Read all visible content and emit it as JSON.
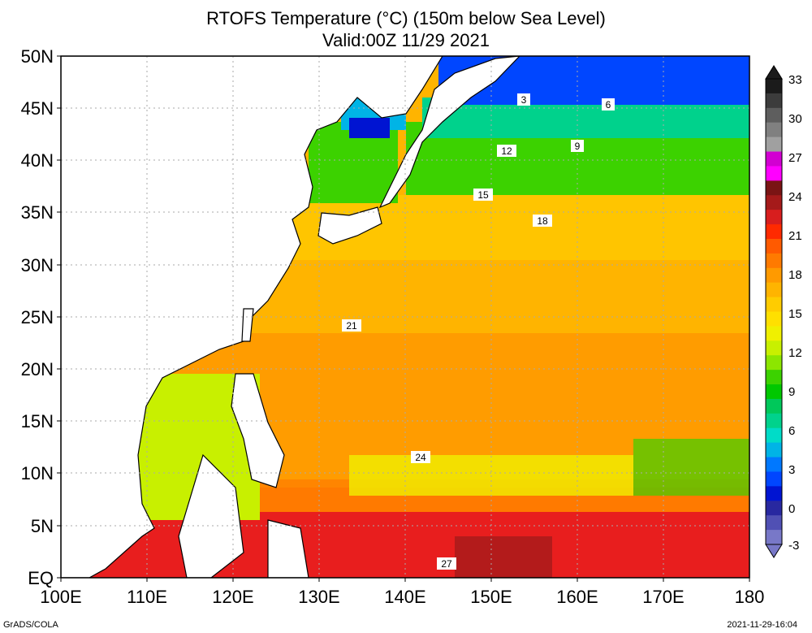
{
  "title": {
    "line1": "RTOFS Temperature (°C) (150m below Sea Level)",
    "line2": "Valid:00Z 11/29 2021"
  },
  "axes": {
    "lat_labels": [
      "50N",
      "45N",
      "40N",
      "35N",
      "30N",
      "25N",
      "20N",
      "15N",
      "10N",
      "5N",
      "EQ"
    ],
    "lon_labels": [
      "100E",
      "110E",
      "120E",
      "130E",
      "140E",
      "150E",
      "160E",
      "170E",
      "180"
    ]
  },
  "colorbar": {
    "labels": [
      "33",
      "30",
      "27",
      "24",
      "21",
      "18",
      "15",
      "12",
      "9",
      "6",
      "3",
      "0",
      "-3"
    ],
    "colors": [
      "#1b1b1b",
      "#3c3c3c",
      "#5e5e5e",
      "#808080",
      "#a0a0a0",
      "#d200d2",
      "#ff00ff",
      "#7a1414",
      "#a51a1a",
      "#d81e1e",
      "#ff2a00",
      "#ff5a00",
      "#ff7a00",
      "#ff9a00",
      "#ffb400",
      "#ffcc00",
      "#ffe000",
      "#f0f000",
      "#c8f000",
      "#8ce600",
      "#3cd200",
      "#00c800",
      "#00c85a",
      "#00d28c",
      "#00dcc8",
      "#00b4e6",
      "#0078ff",
      "#0046ff",
      "#0014d2",
      "#2828a0",
      "#5050b4",
      "#7878c8"
    ]
  },
  "contour_labels": [
    "3",
    "6",
    "9",
    "12",
    "15",
    "18",
    "21",
    "24",
    "27"
  ],
  "footer": {
    "left": "GrADS/COLA",
    "right": "2021-11-29-16:04"
  }
}
